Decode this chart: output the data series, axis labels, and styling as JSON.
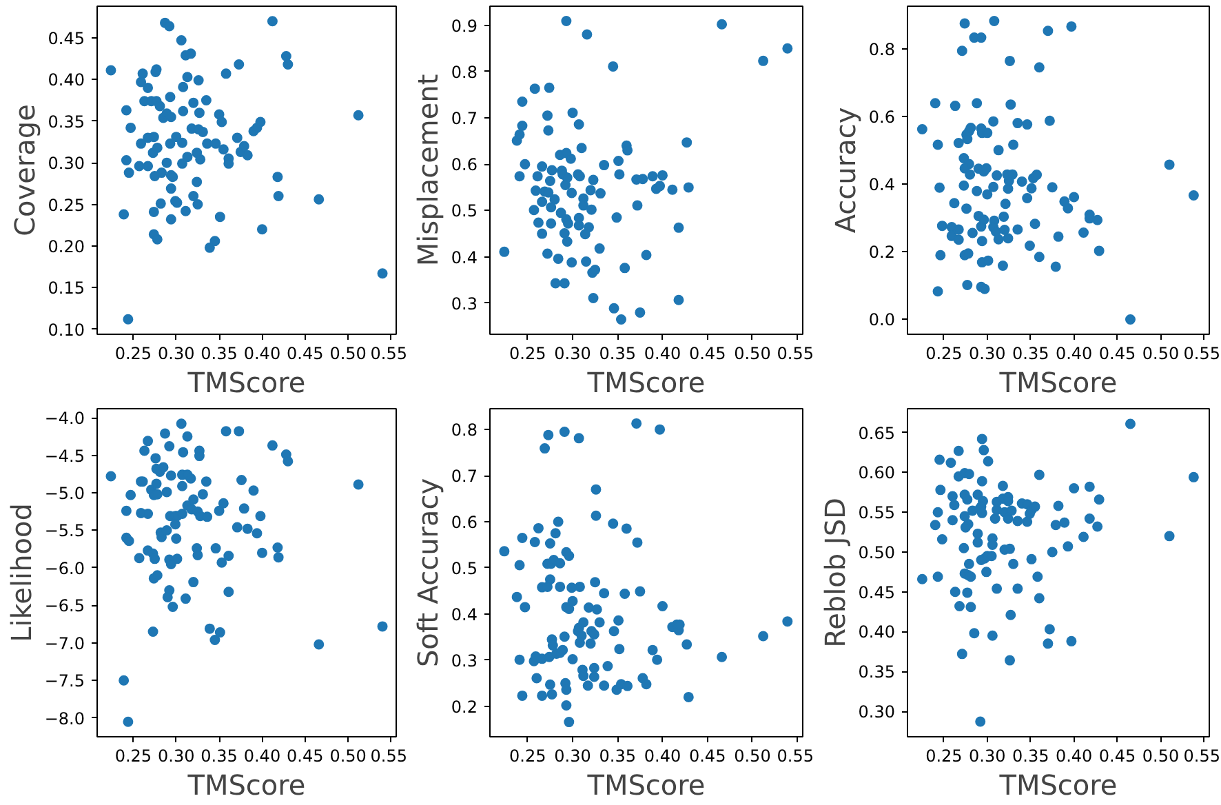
{
  "chart_data": [
    {
      "type": "scatter",
      "xlabel": "TMScore",
      "ylabel": "Coverage",
      "color": "#1f77b4",
      "marker": "circle",
      "xlim": [
        0.208,
        0.556
      ],
      "ylim": [
        0.094,
        0.488
      ],
      "xticks": [
        {
          "value": 0.25,
          "label": "0.25"
        },
        {
          "value": 0.3,
          "label": "0.30"
        },
        {
          "value": 0.35,
          "label": "0.35"
        },
        {
          "value": 0.4,
          "label": "0.40"
        },
        {
          "value": 0.45,
          "label": "0.45"
        },
        {
          "value": 0.5,
          "label": "0.50"
        },
        {
          "value": 0.55,
          "label": "0.55"
        }
      ],
      "yticks": [
        {
          "value": 0.1,
          "label": "0.10"
        },
        {
          "value": 0.15,
          "label": "0.15"
        },
        {
          "value": 0.2,
          "label": "0.20"
        },
        {
          "value": 0.25,
          "label": "0.25"
        },
        {
          "value": 0.3,
          "label": "0.30"
        },
        {
          "value": 0.35,
          "label": "0.35"
        },
        {
          "value": 0.4,
          "label": "0.40"
        },
        {
          "value": 0.45,
          "label": "0.45"
        }
      ],
      "x": [
        0.224,
        0.244,
        0.239,
        0.242,
        0.247,
        0.242,
        0.245,
        0.257,
        0.259,
        0.259,
        0.261,
        0.263,
        0.267,
        0.267,
        0.267,
        0.271,
        0.274,
        0.273,
        0.275,
        0.274,
        0.274,
        0.278,
        0.276,
        0.277,
        0.277,
        0.281,
        0.278,
        0.283,
        0.282,
        0.287,
        0.292,
        0.285,
        0.289,
        0.294,
        0.293,
        0.289,
        0.293,
        0.294,
        0.294,
        0.296,
        0.299,
        0.301,
        0.294,
        0.3,
        0.306,
        0.311,
        0.317,
        0.308,
        0.313,
        0.308,
        0.307,
        0.307,
        0.313,
        0.311,
        0.318,
        0.32,
        0.326,
        0.327,
        0.326,
        0.331,
        0.324,
        0.328,
        0.324,
        0.32,
        0.325,
        0.335,
        0.336,
        0.339,
        0.345,
        0.351,
        0.346,
        0.35,
        0.353,
        0.355,
        0.358,
        0.361,
        0.361,
        0.371,
        0.373,
        0.375,
        0.379,
        0.383,
        0.39,
        0.394,
        0.398,
        0.4,
        0.412,
        0.418,
        0.419,
        0.428,
        0.43,
        0.466,
        0.512,
        0.54
      ],
      "values": [
        0.411,
        0.112,
        0.238,
        0.363,
        0.342,
        0.303,
        0.288,
        0.296,
        0.323,
        0.397,
        0.407,
        0.374,
        0.39,
        0.33,
        0.296,
        0.374,
        0.331,
        0.312,
        0.284,
        0.241,
        0.214,
        0.208,
        0.409,
        0.412,
        0.374,
        0.368,
        0.318,
        0.288,
        0.251,
        0.468,
        0.464,
        0.354,
        0.359,
        0.355,
        0.379,
        0.3,
        0.323,
        0.285,
        0.269,
        0.283,
        0.254,
        0.252,
        0.232,
        0.331,
        0.447,
        0.429,
        0.431,
        0.391,
        0.403,
        0.362,
        0.324,
        0.299,
        0.307,
        0.242,
        0.341,
        0.372,
        0.399,
        0.36,
        0.34,
        0.337,
        0.312,
        0.304,
        0.277,
        0.26,
        0.25,
        0.375,
        0.323,
        0.198,
        0.206,
        0.235,
        0.323,
        0.358,
        0.349,
        0.316,
        0.407,
        0.305,
        0.299,
        0.33,
        0.418,
        0.313,
        0.32,
        0.309,
        0.338,
        0.342,
        0.349,
        0.22,
        0.47,
        0.283,
        0.26,
        0.428,
        0.418,
        0.256,
        0.357,
        0.167
      ]
    },
    {
      "type": "scatter",
      "xlabel": "TMScore",
      "ylabel": "Misplacement",
      "color": "#1f77b4",
      "marker": "circle",
      "xlim": [
        0.208,
        0.556
      ],
      "ylim": [
        0.233,
        0.941
      ],
      "xticks": [
        {
          "value": 0.25,
          "label": "0.25"
        },
        {
          "value": 0.3,
          "label": "0.30"
        },
        {
          "value": 0.35,
          "label": "0.35"
        },
        {
          "value": 0.4,
          "label": "0.40"
        },
        {
          "value": 0.45,
          "label": "0.45"
        },
        {
          "value": 0.5,
          "label": "0.50"
        },
        {
          "value": 0.55,
          "label": "0.55"
        }
      ],
      "yticks": [
        {
          "value": 0.3,
          "label": "0.3"
        },
        {
          "value": 0.4,
          "label": "0.4"
        },
        {
          "value": 0.5,
          "label": "0.5"
        },
        {
          "value": 0.6,
          "label": "0.6"
        },
        {
          "value": 0.7,
          "label": "0.7"
        },
        {
          "value": 0.8,
          "label": "0.8"
        },
        {
          "value": 0.9,
          "label": "0.9"
        }
      ],
      "x": [
        0.224,
        0.238,
        0.241,
        0.244,
        0.244,
        0.247,
        0.241,
        0.258,
        0.274,
        0.272,
        0.273,
        0.261,
        0.266,
        0.259,
        0.266,
        0.257,
        0.262,
        0.266,
        0.272,
        0.277,
        0.275,
        0.269,
        0.273,
        0.28,
        0.276,
        0.276,
        0.284,
        0.281,
        0.291,
        0.286,
        0.293,
        0.298,
        0.288,
        0.289,
        0.294,
        0.292,
        0.299,
        0.287,
        0.293,
        0.295,
        0.291,
        0.294,
        0.299,
        0.3,
        0.307,
        0.31,
        0.306,
        0.308,
        0.312,
        0.312,
        0.307,
        0.307,
        0.314,
        0.318,
        0.321,
        0.32,
        0.323,
        0.331,
        0.315,
        0.322,
        0.325,
        0.323,
        0.33,
        0.335,
        0.346,
        0.354,
        0.349,
        0.351,
        0.352,
        0.358,
        0.36,
        0.361,
        0.345,
        0.316,
        0.293,
        0.372,
        0.371,
        0.378,
        0.382,
        0.375,
        0.389,
        0.393,
        0.397,
        0.4,
        0.411,
        0.418,
        0.418,
        0.427,
        0.429,
        0.466,
        0.512,
        0.539
      ],
      "values": [
        0.411,
        0.651,
        0.664,
        0.683,
        0.735,
        0.6,
        0.574,
        0.763,
        0.765,
        0.705,
        0.673,
        0.574,
        0.595,
        0.543,
        0.519,
        0.501,
        0.474,
        0.45,
        0.407,
        0.587,
        0.564,
        0.541,
        0.539,
        0.524,
        0.507,
        0.472,
        0.396,
        0.343,
        0.343,
        0.62,
        0.624,
        0.612,
        0.586,
        0.578,
        0.571,
        0.555,
        0.538,
        0.495,
        0.481,
        0.472,
        0.451,
        0.433,
        0.388,
        0.711,
        0.686,
        0.635,
        0.578,
        0.574,
        0.526,
        0.511,
        0.484,
        0.468,
        0.449,
        0.464,
        0.502,
        0.544,
        0.566,
        0.537,
        0.39,
        0.366,
        0.372,
        0.311,
        0.418,
        0.598,
        0.289,
        0.265,
        0.485,
        0.607,
        0.578,
        0.376,
        0.64,
        0.63,
        0.811,
        0.88,
        0.909,
        0.511,
        0.567,
        0.568,
        0.404,
        0.28,
        0.574,
        0.547,
        0.553,
        0.576,
        0.545,
        0.463,
        0.307,
        0.647,
        0.55,
        0.902,
        0.823,
        0.85
      ]
    },
    {
      "type": "scatter",
      "xlabel": "TMScore",
      "ylabel": "Accuracy",
      "color": "#1f77b4",
      "marker": "circle",
      "xlim": [
        0.208,
        0.556
      ],
      "ylim": [
        -0.044,
        0.927
      ],
      "xticks": [
        {
          "value": 0.25,
          "label": "0.25"
        },
        {
          "value": 0.3,
          "label": "0.30"
        },
        {
          "value": 0.35,
          "label": "0.35"
        },
        {
          "value": 0.4,
          "label": "0.40"
        },
        {
          "value": 0.45,
          "label": "0.45"
        },
        {
          "value": 0.5,
          "label": "0.50"
        },
        {
          "value": 0.55,
          "label": "0.55"
        }
      ],
      "yticks": [
        {
          "value": 0.0,
          "label": "0.0"
        },
        {
          "value": 0.2,
          "label": "0.2"
        },
        {
          "value": 0.4,
          "label": "0.4"
        },
        {
          "value": 0.6,
          "label": "0.6"
        },
        {
          "value": 0.8,
          "label": "0.8"
        }
      ],
      "x": [
        0.225,
        0.24,
        0.243,
        0.245,
        0.248,
        0.246,
        0.243,
        0.263,
        0.267,
        0.259,
        0.262,
        0.259,
        0.267,
        0.267,
        0.271,
        0.274,
        0.285,
        0.293,
        0.288,
        0.276,
        0.279,
        0.281,
        0.277,
        0.273,
        0.279,
        0.274,
        0.28,
        0.273,
        0.276,
        0.274,
        0.278,
        0.277,
        0.293,
        0.297,
        0.294,
        0.301,
        0.283,
        0.294,
        0.293,
        0.29,
        0.296,
        0.288,
        0.29,
        0.296,
        0.299,
        0.293,
        0.294,
        0.3,
        0.307,
        0.308,
        0.313,
        0.311,
        0.307,
        0.3,
        0.308,
        0.307,
        0.31,
        0.313,
        0.318,
        0.32,
        0.319,
        0.321,
        0.324,
        0.325,
        0.323,
        0.329,
        0.324,
        0.33,
        0.327,
        0.326,
        0.335,
        0.335,
        0.34,
        0.346,
        0.346,
        0.349,
        0.351,
        0.353,
        0.355,
        0.357,
        0.36,
        0.36,
        0.37,
        0.372,
        0.375,
        0.379,
        0.382,
        0.389,
        0.393,
        0.397,
        0.4,
        0.411,
        0.418,
        0.418,
        0.427,
        0.429,
        0.465,
        0.51,
        0.538
      ],
      "values": [
        0.563,
        0.64,
        0.517,
        0.39,
        0.277,
        0.19,
        0.083,
        0.632,
        0.522,
        0.273,
        0.344,
        0.247,
        0.236,
        0.266,
        0.795,
        0.876,
        0.834,
        0.834,
        0.64,
        0.547,
        0.557,
        0.567,
        0.534,
        0.477,
        0.46,
        0.447,
        0.429,
        0.396,
        0.328,
        0.19,
        0.195,
        0.102,
        0.096,
        0.09,
        0.169,
        0.174,
        0.256,
        0.232,
        0.275,
        0.306,
        0.295,
        0.38,
        0.446,
        0.438,
        0.447,
        0.565,
        0.552,
        0.552,
        0.586,
        0.883,
        0.501,
        0.426,
        0.392,
        0.37,
        0.292,
        0.273,
        0.26,
        0.237,
        0.159,
        0.265,
        0.304,
        0.342,
        0.387,
        0.41,
        0.429,
        0.429,
        0.24,
        0.517,
        0.636,
        0.765,
        0.581,
        0.266,
        0.408,
        0.577,
        0.359,
        0.218,
        0.388,
        0.418,
        0.283,
        0.428,
        0.185,
        0.746,
        0.854,
        0.588,
        0.391,
        0.156,
        0.245,
        0.349,
        0.329,
        0.867,
        0.362,
        0.257,
        0.31,
        0.299,
        0.294,
        0.203,
        0.0,
        0.458,
        0.367
      ]
    },
    {
      "type": "scatter",
      "xlabel": "TMScore",
      "ylabel": "Likelihood",
      "color": "#1f77b4",
      "marker": "circle",
      "xlim": [
        0.208,
        0.556
      ],
      "ylim": [
        -8.25,
        -3.88
      ],
      "xticks": [
        {
          "value": 0.25,
          "label": "0.25"
        },
        {
          "value": 0.3,
          "label": "0.30"
        },
        {
          "value": 0.35,
          "label": "0.35"
        },
        {
          "value": 0.4,
          "label": "0.40"
        },
        {
          "value": 0.45,
          "label": "0.45"
        },
        {
          "value": 0.5,
          "label": "0.50"
        },
        {
          "value": 0.55,
          "label": "0.55"
        }
      ],
      "yticks": [
        {
          "value": -8.0,
          "label": "−8.0"
        },
        {
          "value": -7.5,
          "label": "−7.5"
        },
        {
          "value": -7.0,
          "label": "−7.0"
        },
        {
          "value": -6.5,
          "label": "−6.5"
        },
        {
          "value": -6.0,
          "label": "−6.0"
        },
        {
          "value": -5.5,
          "label": "−5.5"
        },
        {
          "value": -5.0,
          "label": "−5.0"
        },
        {
          "value": -4.5,
          "label": "−4.5"
        },
        {
          "value": -4.0,
          "label": "−4.0"
        }
      ],
      "x": [
        0.224,
        0.239,
        0.244,
        0.242,
        0.247,
        0.242,
        0.245,
        0.257,
        0.259,
        0.259,
        0.261,
        0.263,
        0.267,
        0.267,
        0.267,
        0.271,
        0.274,
        0.273,
        0.275,
        0.274,
        0.273,
        0.278,
        0.276,
        0.277,
        0.277,
        0.281,
        0.278,
        0.283,
        0.282,
        0.287,
        0.292,
        0.285,
        0.289,
        0.294,
        0.293,
        0.289,
        0.292,
        0.294,
        0.292,
        0.29,
        0.296,
        0.299,
        0.301,
        0.3,
        0.301,
        0.299,
        0.306,
        0.308,
        0.313,
        0.307,
        0.307,
        0.313,
        0.317,
        0.307,
        0.313,
        0.311,
        0.32,
        0.32,
        0.318,
        0.325,
        0.327,
        0.327,
        0.331,
        0.328,
        0.324,
        0.325,
        0.335,
        0.336,
        0.339,
        0.345,
        0.351,
        0.346,
        0.35,
        0.353,
        0.355,
        0.358,
        0.361,
        0.361,
        0.371,
        0.373,
        0.376,
        0.379,
        0.383,
        0.39,
        0.394,
        0.398,
        0.4,
        0.412,
        0.418,
        0.419,
        0.428,
        0.43,
        0.466,
        0.512,
        0.54
      ],
      "values": [
        -4.78,
        -7.5,
        -8.05,
        -5.24,
        -5.03,
        -5.6,
        -5.64,
        -5.87,
        -5.27,
        -4.85,
        -4.85,
        -4.44,
        -4.31,
        -5.28,
        -5.77,
        -4.96,
        -5.03,
        -5.81,
        -5.88,
        -6.14,
        -6.85,
        -6.1,
        -4.54,
        -4.68,
        -4.88,
        -4.72,
        -5.02,
        -5.59,
        -5.53,
        -4.21,
        -4.38,
        -4.66,
        -4.99,
        -4.77,
        -5.31,
        -5.5,
        -5.89,
        -5.95,
        -6.3,
        -6.39,
        -6.52,
        -5.31,
        -5.31,
        -5.61,
        -5.88,
        -5.42,
        -4.08,
        -4.46,
        -4.25,
        -4.76,
        -4.91,
        -4.76,
        -4.81,
        -5.28,
        -5.17,
        -6.41,
        -6.19,
        -5.09,
        -5.22,
        -5.25,
        -4.44,
        -4.51,
        -5.02,
        -5.31,
        -5.74,
        -5.83,
        -4.85,
        -5.32,
        -6.81,
        -6.96,
        -6.86,
        -5.74,
        -5.24,
        -5.93,
        -5.14,
        -4.18,
        -5.84,
        -6.32,
        -5.46,
        -4.18,
        -4.83,
        -5.21,
        -5.48,
        -4.97,
        -5.54,
        -5.31,
        -5.8,
        -4.37,
        -5.73,
        -5.86,
        -4.49,
        -4.58,
        -7.02,
        -4.89,
        -6.78
      ]
    },
    {
      "type": "scatter",
      "xlabel": "TMScore",
      "ylabel": "Soft Accuracy",
      "color": "#1f77b4",
      "marker": "circle",
      "xlim": [
        0.208,
        0.556
      ],
      "ylim": [
        0.134,
        0.845
      ],
      "xticks": [
        {
          "value": 0.25,
          "label": "0.25"
        },
        {
          "value": 0.3,
          "label": "0.30"
        },
        {
          "value": 0.35,
          "label": "0.35"
        },
        {
          "value": 0.4,
          "label": "0.40"
        },
        {
          "value": 0.45,
          "label": "0.45"
        },
        {
          "value": 0.5,
          "label": "0.50"
        },
        {
          "value": 0.55,
          "label": "0.55"
        }
      ],
      "yticks": [
        {
          "value": 0.2,
          "label": "0.2"
        },
        {
          "value": 0.3,
          "label": "0.3"
        },
        {
          "value": 0.4,
          "label": "0.4"
        },
        {
          "value": 0.5,
          "label": "0.5"
        },
        {
          "value": 0.6,
          "label": "0.6"
        },
        {
          "value": 0.7,
          "label": "0.7"
        },
        {
          "value": 0.8,
          "label": "0.8"
        }
      ],
      "x": [
        0.224,
        0.238,
        0.241,
        0.241,
        0.244,
        0.244,
        0.247,
        0.258,
        0.262,
        0.26,
        0.257,
        0.259,
        0.266,
        0.266,
        0.266,
        0.272,
        0.269,
        0.273,
        0.274,
        0.275,
        0.275,
        0.272,
        0.276,
        0.279,
        0.277,
        0.278,
        0.282,
        0.275,
        0.277,
        0.281,
        0.284,
        0.286,
        0.286,
        0.286,
        0.289,
        0.291,
        0.293,
        0.296,
        0.293,
        0.296,
        0.291,
        0.3,
        0.292,
        0.293,
        0.293,
        0.296,
        0.3,
        0.299,
        0.307,
        0.308,
        0.307,
        0.306,
        0.312,
        0.31,
        0.308,
        0.311,
        0.312,
        0.317,
        0.318,
        0.32,
        0.321,
        0.324,
        0.324,
        0.324,
        0.325,
        0.326,
        0.326,
        0.327,
        0.33,
        0.335,
        0.335,
        0.339,
        0.345,
        0.346,
        0.351,
        0.349,
        0.352,
        0.354,
        0.358,
        0.36,
        0.361,
        0.371,
        0.372,
        0.375,
        0.378,
        0.382,
        0.389,
        0.394,
        0.397,
        0.4,
        0.411,
        0.416,
        0.418,
        0.419,
        0.427,
        0.429,
        0.466,
        0.512,
        0.539
      ],
      "values": [
        0.536,
        0.437,
        0.506,
        0.301,
        0.223,
        0.565,
        0.415,
        0.556,
        0.586,
        0.261,
        0.298,
        0.308,
        0.303,
        0.223,
        0.458,
        0.459,
        0.759,
        0.788,
        0.307,
        0.553,
        0.475,
        0.509,
        0.509,
        0.517,
        0.345,
        0.332,
        0.314,
        0.247,
        0.226,
        0.575,
        0.6,
        0.51,
        0.459,
        0.316,
        0.322,
        0.795,
        0.534,
        0.526,
        0.415,
        0.411,
        0.351,
        0.302,
        0.25,
        0.236,
        0.202,
        0.166,
        0.428,
        0.457,
        0.781,
        0.459,
        0.37,
        0.363,
        0.382,
        0.353,
        0.338,
        0.279,
        0.266,
        0.245,
        0.414,
        0.336,
        0.363,
        0.356,
        0.283,
        0.264,
        0.469,
        0.67,
        0.613,
        0.41,
        0.382,
        0.445,
        0.245,
        0.287,
        0.596,
        0.363,
        0.386,
        0.236,
        0.324,
        0.248,
        0.444,
        0.585,
        0.244,
        0.813,
        0.555,
        0.449,
        0.261,
        0.248,
        0.322,
        0.301,
        0.8,
        0.417,
        0.372,
        0.377,
        0.365,
        0.377,
        0.334,
        0.22,
        0.307,
        0.352,
        0.384
      ]
    },
    {
      "type": "scatter",
      "xlabel": "TMScore",
      "ylabel": "Reblob JSD",
      "color": "#1f77b4",
      "marker": "circle",
      "xlim": [
        0.208,
        0.556
      ],
      "ylim": [
        0.268,
        0.68
      ],
      "xticks": [
        {
          "value": 0.25,
          "label": "0.25"
        },
        {
          "value": 0.3,
          "label": "0.30"
        },
        {
          "value": 0.35,
          "label": "0.35"
        },
        {
          "value": 0.4,
          "label": "0.40"
        },
        {
          "value": 0.45,
          "label": "0.45"
        },
        {
          "value": 0.5,
          "label": "0.50"
        },
        {
          "value": 0.55,
          "label": "0.55"
        }
      ],
      "yticks": [
        {
          "value": 0.3,
          "label": "0.30"
        },
        {
          "value": 0.35,
          "label": "0.35"
        },
        {
          "value": 0.4,
          "label": "0.40"
        },
        {
          "value": 0.45,
          "label": "0.45"
        },
        {
          "value": 0.5,
          "label": "0.50"
        },
        {
          "value": 0.55,
          "label": "0.55"
        },
        {
          "value": 0.6,
          "label": "0.60"
        },
        {
          "value": 0.65,
          "label": "0.65"
        }
      ],
      "x": [
        0.225,
        0.24,
        0.243,
        0.245,
        0.246,
        0.248,
        0.243,
        0.258,
        0.26,
        0.262,
        0.26,
        0.263,
        0.267,
        0.267,
        0.268,
        0.271,
        0.274,
        0.279,
        0.274,
        0.277,
        0.274,
        0.278,
        0.275,
        0.273,
        0.279,
        0.274,
        0.278,
        0.281,
        0.277,
        0.281,
        0.285,
        0.283,
        0.289,
        0.294,
        0.296,
        0.301,
        0.294,
        0.295,
        0.293,
        0.291,
        0.294,
        0.289,
        0.289,
        0.293,
        0.297,
        0.3,
        0.299,
        0.305,
        0.306,
        0.306,
        0.309,
        0.311,
        0.311,
        0.311,
        0.306,
        0.318,
        0.318,
        0.32,
        0.324,
        0.324,
        0.324,
        0.328,
        0.32,
        0.326,
        0.33,
        0.327,
        0.326,
        0.335,
        0.335,
        0.34,
        0.346,
        0.346,
        0.349,
        0.351,
        0.355,
        0.351,
        0.358,
        0.36,
        0.36,
        0.37,
        0.372,
        0.375,
        0.379,
        0.382,
        0.389,
        0.393,
        0.397,
        0.4,
        0.411,
        0.418,
        0.418,
        0.427,
        0.429,
        0.465,
        0.51,
        0.538,
        0.292
      ],
      "values": [
        0.466,
        0.534,
        0.55,
        0.616,
        0.578,
        0.516,
        0.469,
        0.612,
        0.57,
        0.559,
        0.54,
        0.45,
        0.627,
        0.595,
        0.432,
        0.372,
        0.599,
        0.598,
        0.572,
        0.566,
        0.545,
        0.535,
        0.531,
        0.505,
        0.485,
        0.473,
        0.471,
        0.469,
        0.449,
        0.431,
        0.398,
        0.552,
        0.572,
        0.642,
        0.628,
        0.614,
        0.589,
        0.564,
        0.557,
        0.554,
        0.549,
        0.523,
        0.512,
        0.49,
        0.492,
        0.495,
        0.475,
        0.495,
        0.517,
        0.509,
        0.542,
        0.563,
        0.553,
        0.454,
        0.395,
        0.583,
        0.567,
        0.55,
        0.569,
        0.564,
        0.542,
        0.552,
        0.503,
        0.504,
        0.485,
        0.421,
        0.364,
        0.539,
        0.454,
        0.561,
        0.56,
        0.538,
        0.548,
        0.553,
        0.557,
        0.491,
        0.469,
        0.597,
        0.442,
        0.385,
        0.403,
        0.5,
        0.534,
        0.558,
        0.537,
        0.507,
        0.388,
        0.58,
        0.519,
        0.582,
        0.542,
        0.532,
        0.566,
        0.661,
        0.52,
        0.594,
        0.287
      ]
    }
  ]
}
